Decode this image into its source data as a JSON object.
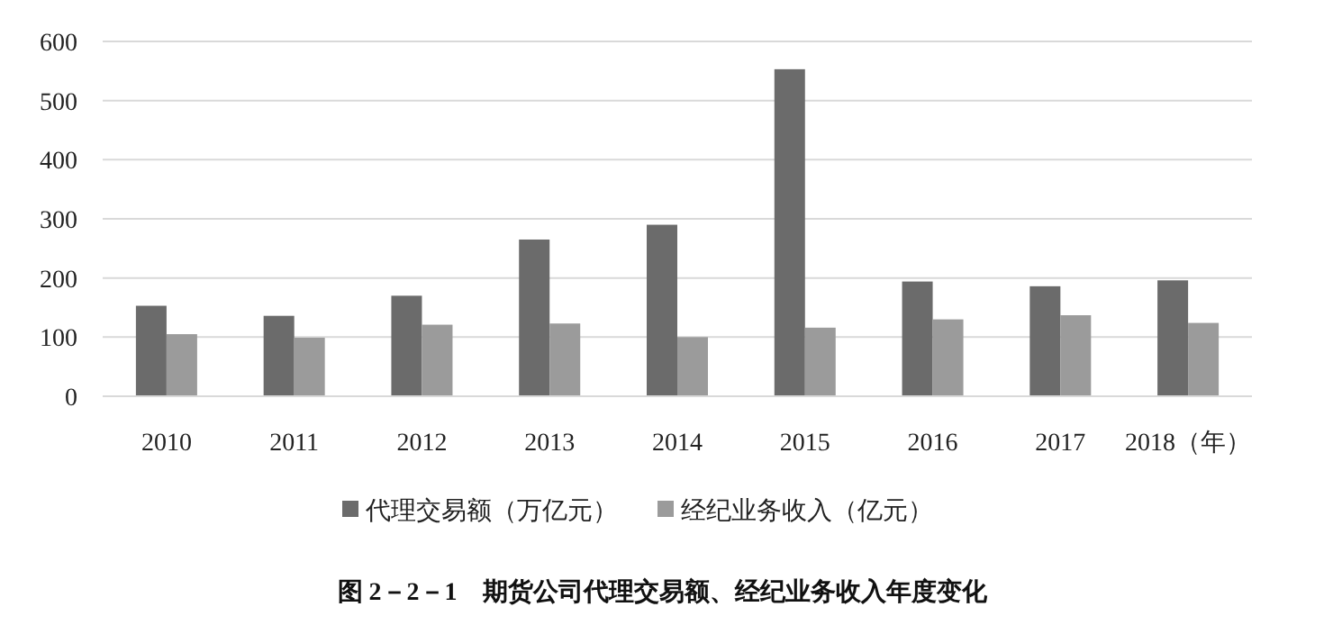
{
  "chart_data": {
    "type": "bar",
    "title": "图 2－2－1　期货公司代理交易额、经纪业务收入年度变化",
    "categories": [
      "2010",
      "2011",
      "2012",
      "2013",
      "2014",
      "2015",
      "2016",
      "2017",
      "2018（年）"
    ],
    "series": [
      {
        "name": "代理交易额（万亿元）",
        "color": "#6b6b6b",
        "values": [
          153,
          136,
          170,
          265,
          290,
          553,
          194,
          186,
          196
        ]
      },
      {
        "name": "经纪业务收入（亿元）",
        "color": "#9b9b9b",
        "values": [
          105,
          99,
          121,
          123,
          100,
          116,
          130,
          137,
          124
        ]
      }
    ],
    "ylim": [
      0,
      600
    ],
    "yticks": [
      0,
      100,
      200,
      300,
      400,
      500,
      600
    ],
    "grid": "y",
    "legend": "bottom"
  }
}
